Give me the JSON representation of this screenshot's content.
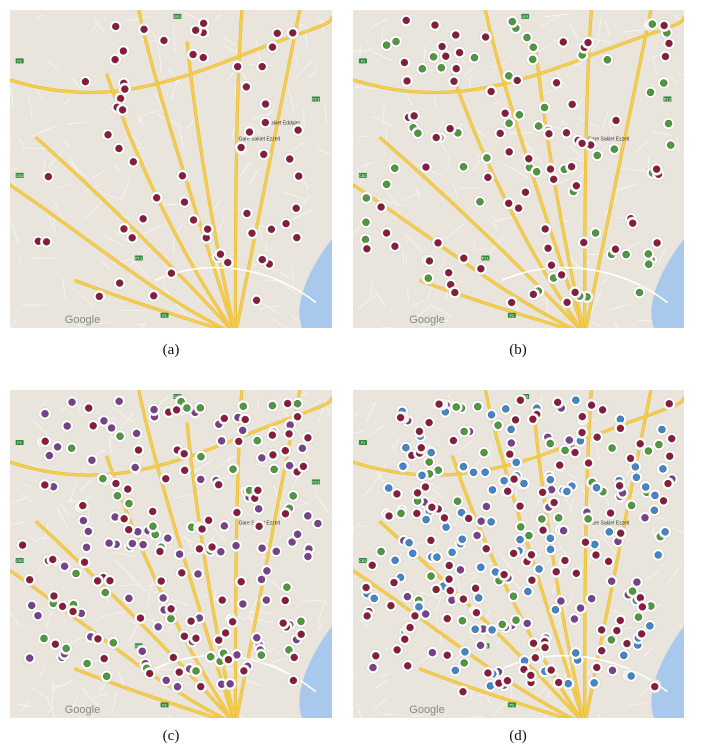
{
  "figure": {
    "panels": [
      {
        "id": "a",
        "caption": "(a)",
        "legend_mark": "Google",
        "landmark": "Gare Sakiet Ezzeit",
        "sakiet_label": "Sakiet Eddaier",
        "markers": {
          "red": 62,
          "green": 0,
          "purple": 0,
          "blue": 0
        }
      },
      {
        "id": "b",
        "caption": "(b)",
        "legend_mark": "Google",
        "landmark": "Gare Sakiet Ezzeit",
        "sakiet_label": "",
        "markers": {
          "red": 70,
          "green": 58,
          "purple": 0,
          "blue": 0
        }
      },
      {
        "id": "c",
        "caption": "(c)",
        "legend_mark": "Google",
        "landmark": "Gare Sakiet Ezzeit",
        "sakiet_label": "",
        "markers": {
          "red": 80,
          "green": 45,
          "purple": 90,
          "blue": 0
        }
      },
      {
        "id": "d",
        "caption": "(d)",
        "legend_mark": "Google",
        "landmark": "Gare Sakiet Ezzeit",
        "sakiet_label": "",
        "markers": {
          "red": 110,
          "green": 45,
          "purple": 55,
          "blue": 95
        }
      }
    ],
    "road_labels": [
      "P1",
      "GP1",
      "P13",
      "C82",
      "P11",
      "P2"
    ],
    "marker_colors": {
      "red": "#8b1a3c",
      "green": "#4c9a3a",
      "purple": "#7a3f8e",
      "blue": "#3f86cc"
    },
    "map_colors": {
      "land": "#e9e5dc",
      "major_road": "#f5cf4a",
      "minor_road": "#ffffff",
      "water": "#a8c8ec",
      "halo": "#ffffff"
    }
  }
}
